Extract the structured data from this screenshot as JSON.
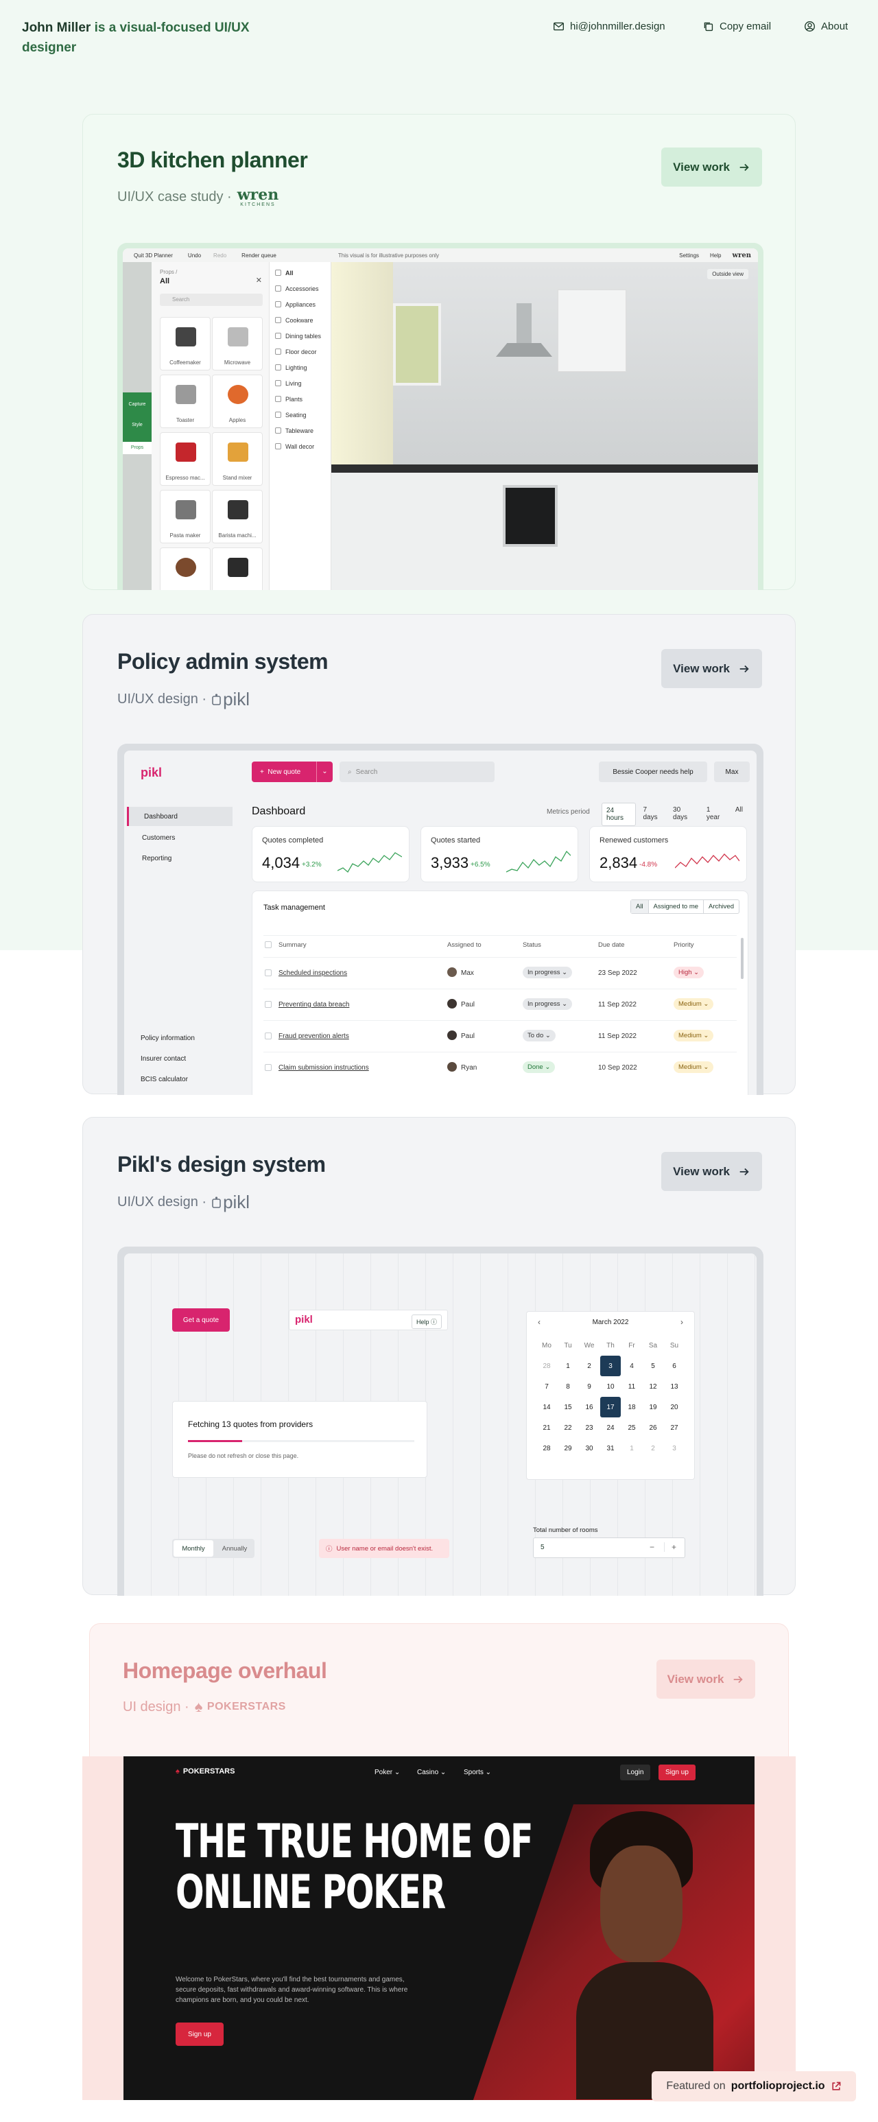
{
  "header": {
    "name": "John Miller",
    "tagline": "is a visual-focused UI/UX designer",
    "email": "hi@johnmiller.design",
    "copy_email": "Copy email",
    "about": "About"
  },
  "projects": {
    "kitchen": {
      "title": "3D kitchen planner",
      "subtitle": "UI/UX case study ·",
      "brand": "wren",
      "brand_sub": "KITCHENS",
      "button": "View work",
      "app": {
        "toolbar": [
          "Quit 3D Planner",
          "Undo",
          "Redo",
          "Render queue"
        ],
        "notice": "This visual is for illustrative purposes only",
        "settings": "Settings",
        "help": "Help",
        "logo": "wren",
        "outside_view": "Outside view",
        "rail": [
          "Capture",
          "Style",
          "Props"
        ],
        "breadcrumb": "Props /",
        "panel_title": "All",
        "search": "Search",
        "categories": [
          "All",
          "Accessories",
          "Appliances",
          "Cookware",
          "Dining tables",
          "Floor decor",
          "Lighting",
          "Living",
          "Plants",
          "Seating",
          "Tableware",
          "Wall decor"
        ],
        "props": [
          "Coffeemaker",
          "Microwave",
          "Toaster",
          "Apples",
          "Espresso mac...",
          "Stand mixer",
          "Pasta maker",
          "Barista machi..."
        ]
      }
    },
    "policy": {
      "title": "Policy admin system",
      "subtitle": "UI/UX design ·",
      "brand": "pikl",
      "button": "View work",
      "app": {
        "logo": "pikl",
        "new_quote": "New quote",
        "search": "Search",
        "help_user": "Bessie Cooper needs help",
        "user": "Max",
        "nav": [
          "Dashboard",
          "Customers",
          "Reporting"
        ],
        "nav_bottom": [
          "Policy information",
          "Insurer contact",
          "BCIS calculator"
        ],
        "page_title": "Dashboard",
        "metrics_label": "Metrics period",
        "periods": [
          "24 hours",
          "7 days",
          "30 days",
          "1 year",
          "All"
        ],
        "stats": [
          {
            "label": "Quotes completed",
            "value": "4,034",
            "delta": "+3.2%"
          },
          {
            "label": "Quotes started",
            "value": "3,933",
            "delta": "+6.5%"
          },
          {
            "label": "Renewed customers",
            "value": "2,834",
            "delta": "-4.8%"
          }
        ],
        "task_title": "Task management",
        "task_filters": [
          "All",
          "Assigned to me",
          "Archived"
        ],
        "columns": [
          "Summary",
          "Assigned to",
          "Status",
          "Due date",
          "Priority"
        ],
        "rows": [
          {
            "summary": "Scheduled inspections",
            "assignee": "Max",
            "status": "In progress",
            "due": "23 Sep 2022",
            "priority": "High"
          },
          {
            "summary": "Preventing data breach",
            "assignee": "Paul",
            "status": "In progress",
            "due": "11 Sep 2022",
            "priority": "Medium"
          },
          {
            "summary": "Fraud prevention alerts",
            "assignee": "Paul",
            "status": "To do",
            "due": "11 Sep 2022",
            "priority": "Medium"
          },
          {
            "summary": "Claim submission instructions",
            "assignee": "Ryan",
            "status": "Done",
            "due": "10 Sep 2022",
            "priority": "Medium"
          }
        ]
      }
    },
    "design_system": {
      "title": "Pikl's design system",
      "subtitle": "UI/UX design ·",
      "brand": "pikl",
      "button": "View work",
      "app": {
        "get_quote": "Get a quote",
        "logo": "pikl",
        "help": "Help",
        "month": "March 2022",
        "weekdays": [
          "Mo",
          "Tu",
          "We",
          "Th",
          "Fr",
          "Sa",
          "Su"
        ],
        "days": [
          "28",
          "1",
          "2",
          "3",
          "4",
          "5",
          "6",
          "7",
          "8",
          "9",
          "10",
          "11",
          "12",
          "13",
          "14",
          "15",
          "16",
          "17",
          "18",
          "19",
          "20",
          "21",
          "22",
          "23",
          "24",
          "25",
          "26",
          "27",
          "28",
          "29",
          "30",
          "31",
          "1",
          "2",
          "3"
        ],
        "fetching": "Fetching 13 quotes from providers",
        "fetching_note": "Please do not refresh or close this page.",
        "toggle": [
          "Monthly",
          "Annually"
        ],
        "error": "User name or email doesn't exist.",
        "rooms_label": "Total number of rooms",
        "rooms_value": "5",
        "minus": "−",
        "plus": "+"
      }
    },
    "homepage": {
      "title": "Homepage overhaul",
      "subtitle": "UI design ·",
      "brand": "POKERSTARS",
      "button": "View work",
      "app": {
        "logo": "POKERSTARS",
        "nav": [
          "Poker",
          "Casino",
          "Sports"
        ],
        "login": "Login",
        "signup": "Sign up",
        "headline_1": "THE TRUE HOME OF",
        "headline_2": "ONLINE POKER",
        "body": "Welcome to PokerStars, where you'll find the best tournaments and games, secure deposits, fast withdrawals and award-winning software. This is where champions are born, and you could be next.",
        "cta": "Sign up"
      }
    }
  },
  "badge": {
    "prefix": "Featured on",
    "site": "portfolioproject.io"
  },
  "colors": {
    "green": "#2f6b43",
    "pink": "#d8246e",
    "navy": "#1d3b57",
    "red": "#d7263d"
  }
}
